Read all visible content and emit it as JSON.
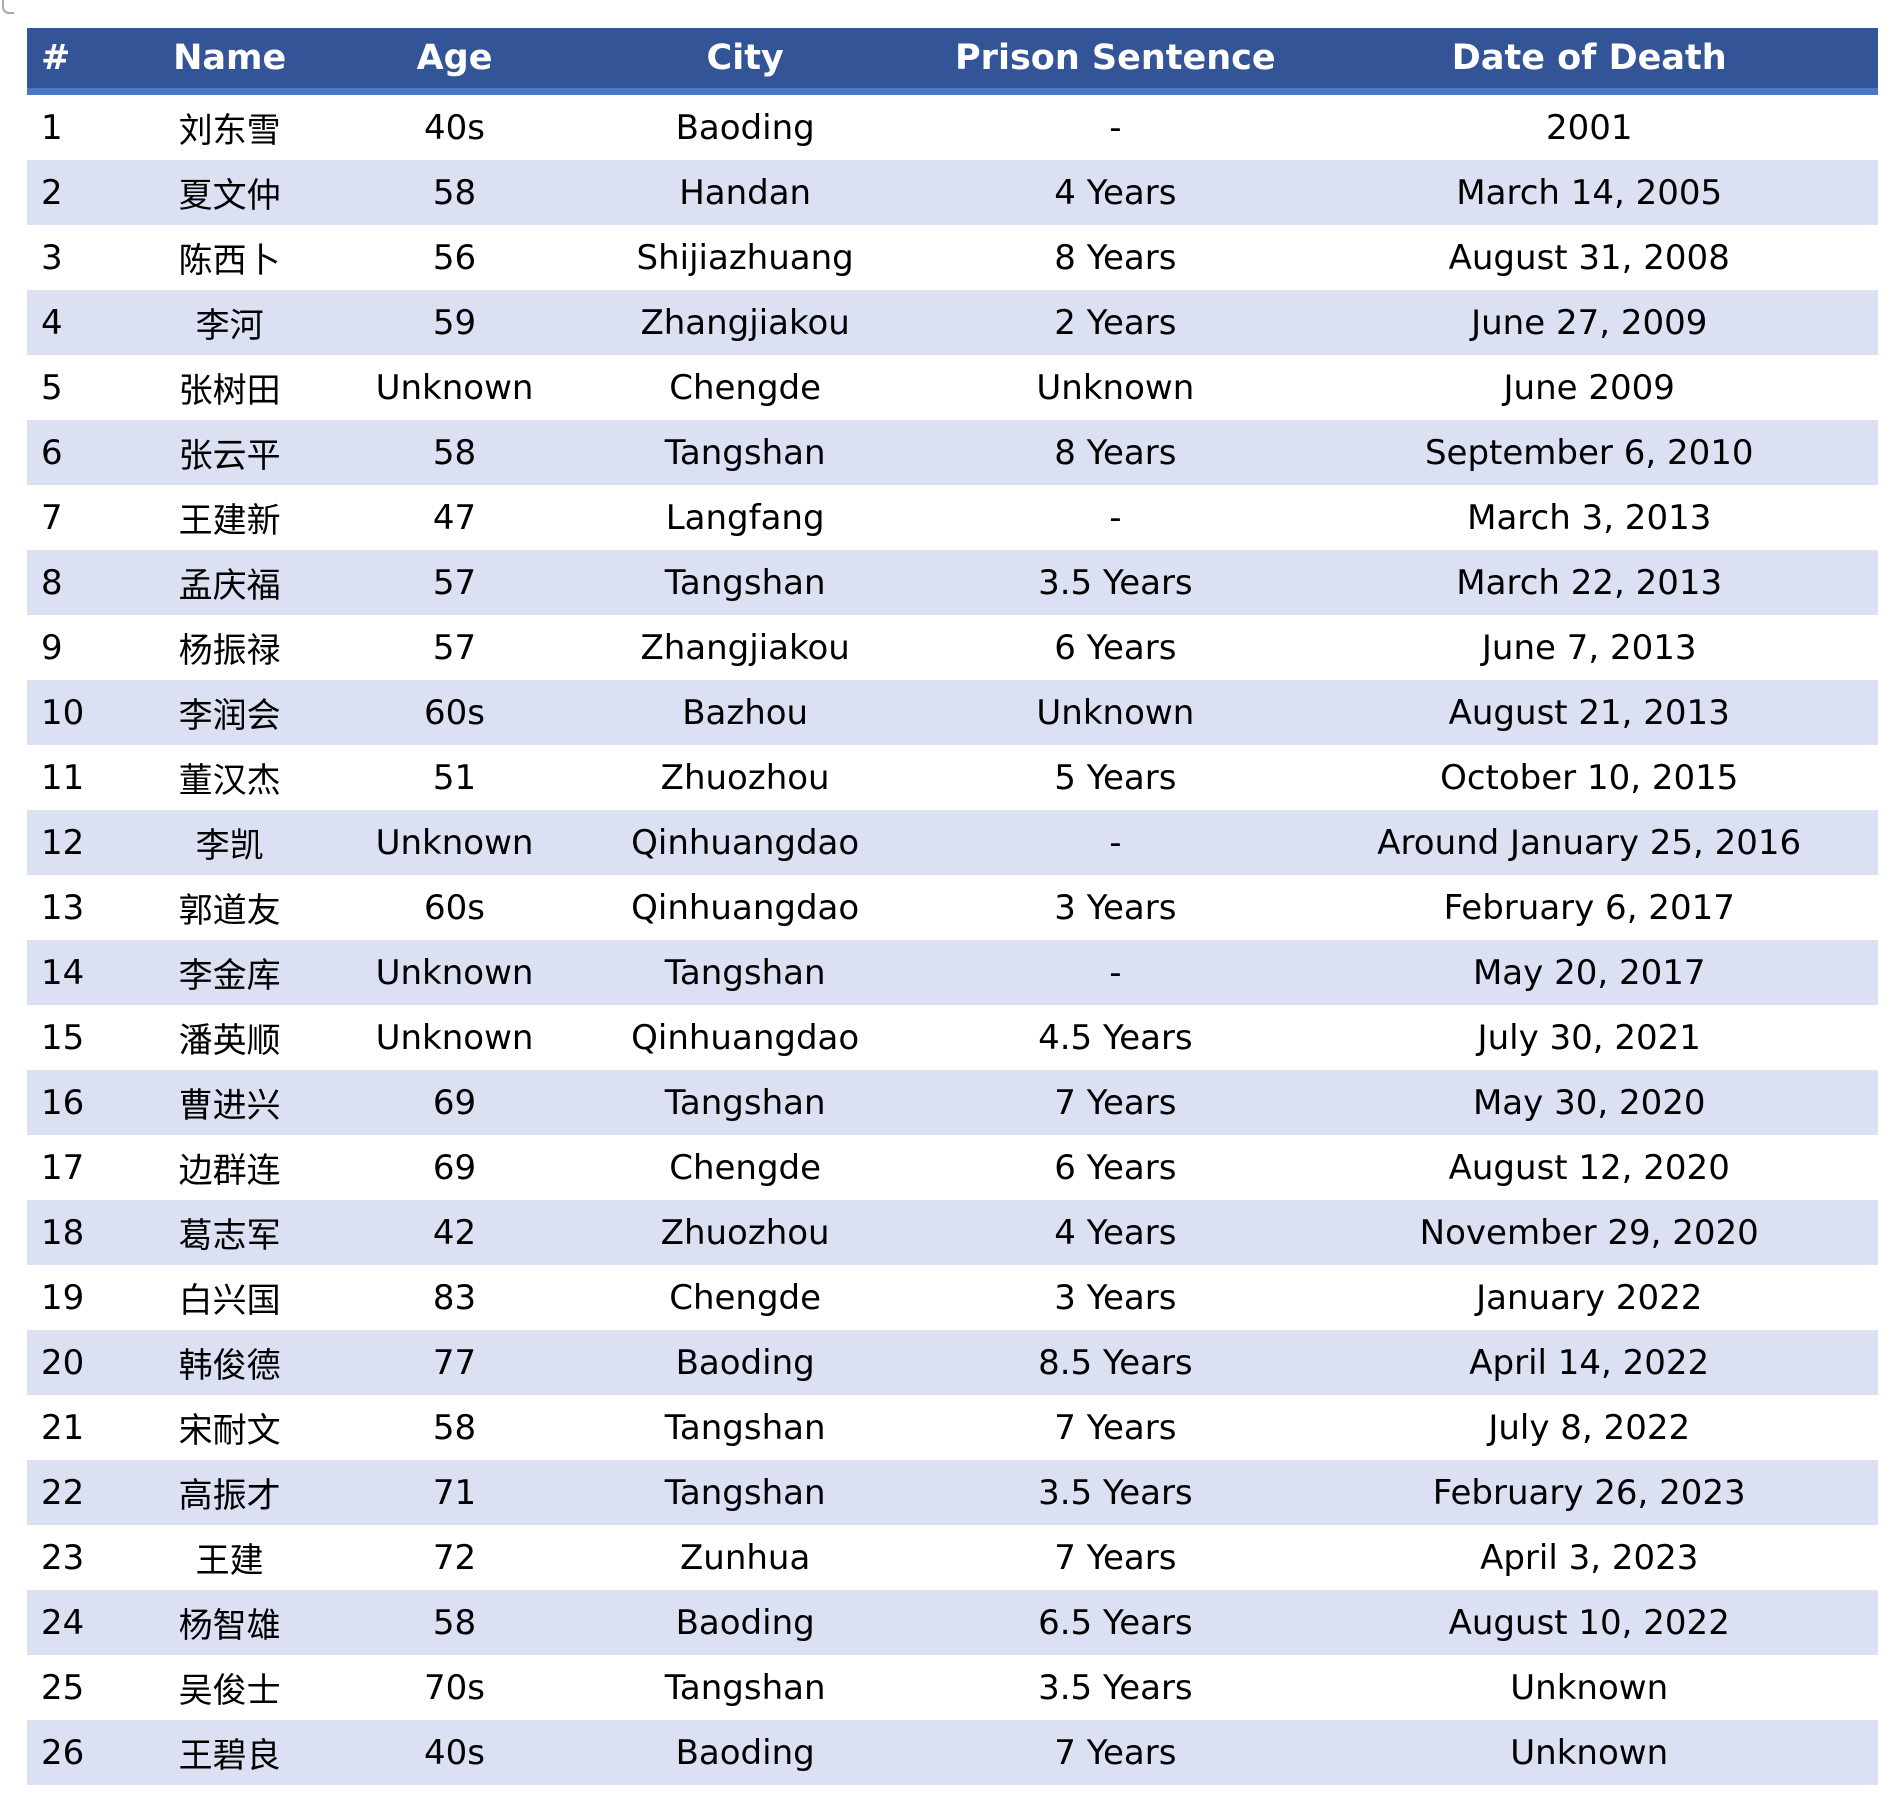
{
  "colors": {
    "header_bg": "#335597",
    "header_border": "#4777c9",
    "header_text": "#ffffff",
    "row_alt_bg": "#dbe0f2",
    "row_bg": "#ffffff",
    "body_text": "#000000"
  },
  "table": {
    "columns": [
      {
        "key": "num",
        "label": "#"
      },
      {
        "key": "name",
        "label": "Name"
      },
      {
        "key": "age",
        "label": "Age"
      },
      {
        "key": "city",
        "label": "City"
      },
      {
        "key": "sentence",
        "label": "Prison Sentence"
      },
      {
        "key": "death",
        "label": "Date of Death"
      }
    ],
    "rows": [
      [
        "1",
        "刘东雪",
        "40s",
        "Baoding",
        "-",
        "2001"
      ],
      [
        "2",
        "夏文仲",
        "58",
        "Handan",
        "4 Years",
        "March 14, 2005"
      ],
      [
        "3",
        "陈西卜",
        "56",
        "Shijiazhuang",
        "8 Years",
        "August 31, 2008"
      ],
      [
        "4",
        "李河",
        "59",
        "Zhangjiakou",
        "2 Years",
        "June 27, 2009"
      ],
      [
        "5",
        "张树田",
        "Unknown",
        "Chengde",
        "Unknown",
        "June 2009"
      ],
      [
        "6",
        "张云平",
        "58",
        "Tangshan",
        "8 Years",
        "September 6, 2010"
      ],
      [
        "7",
        "王建新",
        "47",
        "Langfang",
        "-",
        "March 3, 2013"
      ],
      [
        "8",
        "孟庆福",
        "57",
        "Tangshan",
        "3.5 Years",
        "March 22, 2013"
      ],
      [
        "9",
        "杨振禄",
        "57",
        "Zhangjiakou",
        "6 Years",
        "June 7, 2013"
      ],
      [
        "10",
        "李润会",
        "60s",
        "Bazhou",
        "Unknown",
        "August 21, 2013"
      ],
      [
        "11",
        "董汉杰",
        "51",
        "Zhuozhou",
        "5 Years",
        "October 10, 2015"
      ],
      [
        "12",
        "李凯",
        "Unknown",
        "Qinhuangdao",
        "-",
        "Around January 25, 2016"
      ],
      [
        "13",
        "郭道友",
        "60s",
        "Qinhuangdao",
        "3 Years",
        "February 6, 2017"
      ],
      [
        "14",
        "李金库",
        "Unknown",
        "Tangshan",
        "-",
        "May 20, 2017"
      ],
      [
        "15",
        "潘英顺",
        "Unknown",
        "Qinhuangdao",
        "4.5 Years",
        "July 30, 2021"
      ],
      [
        "16",
        "曹进兴",
        "69",
        "Tangshan",
        "7 Years",
        "May 30, 2020"
      ],
      [
        "17",
        "边群连",
        "69",
        "Chengde",
        "6 Years",
        "August 12, 2020"
      ],
      [
        "18",
        "葛志军",
        "42",
        "Zhuozhou",
        "4 Years",
        "November 29, 2020"
      ],
      [
        "19",
        "白兴国",
        "83",
        "Chengde",
        "3 Years",
        "January 2022"
      ],
      [
        "20",
        "韩俊德",
        "77",
        "Baoding",
        "8.5 Years",
        "April 14, 2022"
      ],
      [
        "21",
        "宋耐文",
        "58",
        "Tangshan",
        "7 Years",
        "July 8, 2022"
      ],
      [
        "22",
        "高振才",
        "71",
        "Tangshan",
        "3.5 Years",
        "February 26, 2023"
      ],
      [
        "23",
        "王建",
        "72",
        "Zunhua",
        "7 Years",
        "April 3, 2023"
      ],
      [
        "24",
        "杨智雄",
        "58",
        "Baoding",
        "6.5 Years",
        "August 10, 2022"
      ],
      [
        "25",
        "吴俊士",
        "70s",
        "Tangshan",
        "3.5 Years",
        "Unknown"
      ],
      [
        "26",
        "王碧良",
        "40s",
        "Baoding",
        "7 Years",
        "Unknown"
      ]
    ]
  }
}
